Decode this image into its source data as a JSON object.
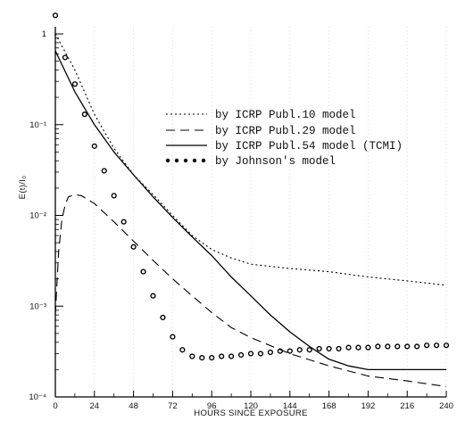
{
  "chart_data": {
    "type": "line",
    "xlabel": "HOURS SINCE EXPOSURE",
    "ylabel": "E(t)/I₀",
    "xlim": [
      0,
      240
    ],
    "ylim": [
      0.0001,
      1
    ],
    "y_scale": "log",
    "x_ticks": [
      0,
      24,
      48,
      72,
      96,
      120,
      144,
      168,
      192,
      216,
      240
    ],
    "x_tick_labels": [
      "0",
      "24",
      "48",
      "72",
      "96",
      "120",
      "144",
      "168",
      "192",
      "216",
      "240"
    ],
    "y_ticks": [
      1,
      0.1,
      0.01,
      0.001,
      0.0001
    ],
    "y_tick_labels": [
      "1",
      "10⁻¹",
      "10⁻²",
      "10⁻³",
      "10⁻⁴"
    ],
    "legend_position": "top-right",
    "series": [
      {
        "name": "by ICRP Publ.10 model",
        "style": "dotted",
        "x": [
          0,
          12,
          24,
          36,
          48,
          60,
          72,
          84,
          96,
          108,
          120,
          144,
          168,
          192,
          216,
          240
        ],
        "y": [
          1.0,
          0.4,
          0.13,
          0.055,
          0.028,
          0.017,
          0.01,
          0.006,
          0.0042,
          0.0034,
          0.0029,
          0.0026,
          0.0024,
          0.0021,
          0.0019,
          0.0017
        ]
      },
      {
        "name": "by ICRP Publ.29 model",
        "style": "dashed",
        "x": [
          0,
          2,
          4,
          6,
          8,
          12,
          16,
          24,
          36,
          48,
          60,
          72,
          84,
          96,
          108,
          120,
          144,
          168,
          192,
          216,
          240
        ],
        "y": [
          0.0008,
          0.004,
          0.009,
          0.013,
          0.016,
          0.017,
          0.0165,
          0.0135,
          0.0085,
          0.0052,
          0.0032,
          0.002,
          0.0013,
          0.00085,
          0.00058,
          0.00045,
          0.0003,
          0.00022,
          0.00017,
          0.00015,
          0.00013
        ]
      },
      {
        "name": "by ICRP Publ.54 model (TCMI)",
        "style": "solid",
        "x": [
          0,
          12,
          24,
          36,
          48,
          60,
          72,
          84,
          96,
          108,
          120,
          132,
          144,
          156,
          168,
          180,
          192,
          216,
          240
        ],
        "y": [
          0.65,
          0.23,
          0.1,
          0.05,
          0.028,
          0.016,
          0.0095,
          0.0058,
          0.0036,
          0.0021,
          0.0013,
          0.0008,
          0.00052,
          0.00036,
          0.00026,
          0.00022,
          0.0002,
          0.0002,
          0.0002
        ]
      },
      {
        "name": "by Johnson's model",
        "style": "dots",
        "x": [
          0,
          6,
          12,
          18,
          24,
          30,
          36,
          42,
          48,
          54,
          60,
          66,
          72,
          78,
          84,
          90,
          96,
          102,
          108,
          114,
          120,
          126,
          132,
          138,
          144,
          150,
          156,
          162,
          168,
          174,
          180,
          186,
          192,
          198,
          204,
          210,
          216,
          222,
          228,
          234,
          240
        ],
        "y": [
          1.6,
          0.55,
          0.28,
          0.13,
          0.058,
          0.031,
          0.0165,
          0.0085,
          0.0045,
          0.0024,
          0.0013,
          0.00075,
          0.00046,
          0.00033,
          0.00028,
          0.00027,
          0.00027,
          0.00028,
          0.00028,
          0.00029,
          0.0003,
          0.0003,
          0.00031,
          0.00032,
          0.00032,
          0.00033,
          0.00033,
          0.00034,
          0.00034,
          0.00034,
          0.00035,
          0.00035,
          0.00035,
          0.00036,
          0.00036,
          0.00036,
          0.00036,
          0.00036,
          0.00037,
          0.00037,
          0.00037
        ]
      }
    ]
  }
}
